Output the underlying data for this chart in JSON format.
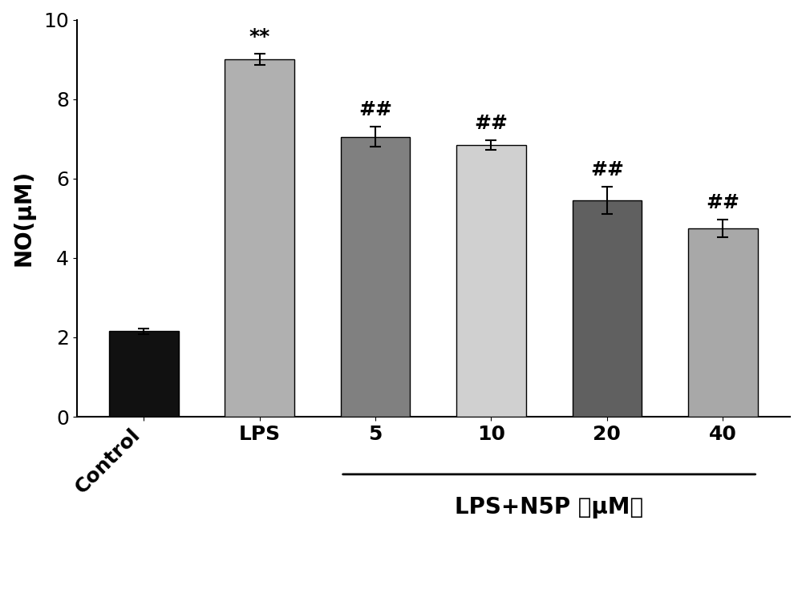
{
  "categories": [
    "Control",
    "LPS",
    "5",
    "10",
    "20",
    "40"
  ],
  "values": [
    2.15,
    9.0,
    7.05,
    6.85,
    5.45,
    4.75
  ],
  "errors": [
    0.08,
    0.15,
    0.25,
    0.12,
    0.35,
    0.22
  ],
  "bar_colors": [
    "#111111",
    "#b0b0b0",
    "#808080",
    "#d0d0d0",
    "#606060",
    "#a8a8a8"
  ],
  "ylabel": "NO(μM)",
  "ylim": [
    0,
    10
  ],
  "yticks": [
    0,
    2,
    4,
    6,
    8,
    10
  ],
  "bracket_label": "LPS+N5P （μM）",
  "annotations": {
    "LPS": "**",
    "5": "##",
    "10": "##",
    "20": "##",
    "40": "##"
  },
  "annotation_fontsize": 18,
  "ylabel_fontsize": 20,
  "tick_fontsize": 18,
  "bracket_fontsize": 20,
  "bar_width": 0.6,
  "background_color": "#ffffff"
}
